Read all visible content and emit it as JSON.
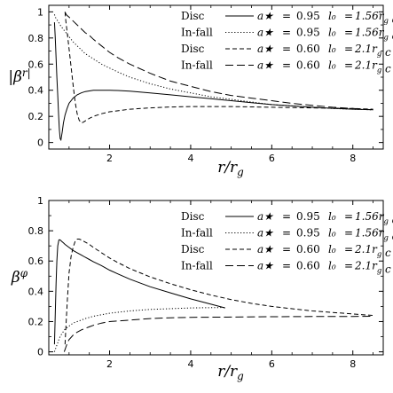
{
  "chart_data": [
    {
      "type": "line",
      "ylabel": "|β^r|",
      "xlabel": "r/r_g",
      "xlim": [
        0.5,
        8.75
      ],
      "ylim": [
        -0.05,
        1.05
      ],
      "xticks": [
        2,
        4,
        6,
        8
      ],
      "yticks": [
        0,
        0.2,
        0.4,
        0.6,
        0.8,
        1
      ],
      "ytick_labels": [
        "0",
        "0.2",
        "0.4",
        "0.6",
        "0.8",
        "1"
      ],
      "legend": "top-right",
      "legend_rows": [
        {
          "label": "Disc",
          "a": "0.95",
          "l0": "1.56r_g c"
        },
        {
          "label": "In-fall",
          "a": "0.95",
          "l0": "1.56r_g c"
        },
        {
          "label": "Disc",
          "a": "0.60",
          "l0": "2.1r_g c"
        },
        {
          "label": "In-fall",
          "a": "0.60",
          "l0": "2.1r_g c"
        }
      ],
      "series": [
        {
          "style": "solid",
          "x": [
            0.64,
            0.66,
            0.68,
            0.7,
            0.72,
            0.74,
            0.76,
            0.78,
            0.8,
            0.83,
            0.86,
            0.9,
            0.95,
            1.0,
            1.1,
            1.2,
            1.3,
            1.4,
            1.5,
            1.6,
            1.8,
            2.0,
            2.2,
            2.5,
            3.0,
            3.5,
            4.0,
            4.5,
            5.0,
            5.5,
            6.0,
            6.5,
            7.0,
            7.5,
            8.0,
            8.5
          ],
          "y": [
            0.92,
            0.8,
            0.65,
            0.5,
            0.36,
            0.22,
            0.1,
            0.03,
            0.02,
            0.08,
            0.15,
            0.21,
            0.26,
            0.3,
            0.34,
            0.365,
            0.38,
            0.39,
            0.395,
            0.4,
            0.4,
            0.4,
            0.398,
            0.393,
            0.38,
            0.365,
            0.35,
            0.335,
            0.32,
            0.305,
            0.29,
            0.28,
            0.27,
            0.262,
            0.255,
            0.25
          ]
        },
        {
          "style": "dotted",
          "x": [
            0.64,
            0.66,
            0.68,
            0.7,
            0.72,
            0.74,
            0.76,
            0.78,
            0.8,
            0.85,
            0.9,
            0.95,
            1.0,
            1.1,
            1.2,
            1.3,
            1.4,
            1.5,
            1.6,
            1.8,
            2.0,
            2.2,
            2.5,
            3.0,
            3.5,
            4.0,
            4.5,
            5.0,
            5.5,
            6.0,
            6.5,
            7.0,
            7.5,
            8.0,
            8.5
          ],
          "y": [
            0.98,
            0.96,
            0.95,
            0.94,
            0.93,
            0.92,
            0.91,
            0.9,
            0.89,
            0.87,
            0.85,
            0.83,
            0.81,
            0.77,
            0.74,
            0.71,
            0.68,
            0.66,
            0.64,
            0.6,
            0.57,
            0.54,
            0.5,
            0.45,
            0.41,
            0.38,
            0.35,
            0.33,
            0.31,
            0.29,
            0.28,
            0.27,
            0.26,
            0.255,
            0.25
          ]
        },
        {
          "style": "dashed",
          "x": [
            0.9,
            0.92,
            0.95,
            1.0,
            1.05,
            1.1,
            1.15,
            1.2,
            1.25,
            1.3,
            1.35,
            1.4,
            1.45,
            1.5,
            1.6,
            1.7,
            1.8,
            2.0,
            2.5,
            3.0,
            3.5,
            4.0,
            5.0,
            6.0,
            7.0,
            8.0,
            8.5
          ],
          "y": [
            1.0,
            0.93,
            0.85,
            0.72,
            0.58,
            0.44,
            0.31,
            0.22,
            0.17,
            0.15,
            0.155,
            0.165,
            0.175,
            0.185,
            0.2,
            0.21,
            0.22,
            0.235,
            0.255,
            0.265,
            0.272,
            0.275,
            0.275,
            0.27,
            0.265,
            0.26,
            0.255
          ]
        },
        {
          "style": "longdash",
          "x": [
            0.9,
            0.93,
            0.96,
            1.0,
            1.1,
            1.2,
            1.3,
            1.4,
            1.5,
            1.6,
            1.8,
            2.0,
            2.2,
            2.5,
            3.0,
            3.5,
            4.0,
            4.5,
            5.0,
            5.5,
            6.0,
            6.5,
            7.0,
            7.5,
            8.0,
            8.5
          ],
          "y": [
            1.0,
            0.98,
            0.97,
            0.96,
            0.93,
            0.9,
            0.87,
            0.84,
            0.82,
            0.79,
            0.74,
            0.69,
            0.65,
            0.6,
            0.53,
            0.47,
            0.43,
            0.39,
            0.36,
            0.34,
            0.32,
            0.3,
            0.285,
            0.27,
            0.26,
            0.25
          ]
        }
      ]
    },
    {
      "type": "line",
      "ylabel": "β^φ",
      "xlabel": "r/r_g",
      "xlim": [
        0.5,
        8.75
      ],
      "ylim": [
        -0.02,
        1.0
      ],
      "xticks": [
        2,
        4,
        6,
        8
      ],
      "yticks": [
        0,
        0.2,
        0.4,
        0.6,
        0.8,
        1
      ],
      "ytick_labels": [
        "0",
        "0.2",
        "0.4",
        "0.6",
        "0.8",
        "1"
      ],
      "legend": "top-right",
      "legend_rows": [
        {
          "label": "Disc",
          "a": "0.95",
          "l0": "1.56r_g c"
        },
        {
          "label": "In-fall",
          "a": "0.95",
          "l0": "1.56r_g c"
        },
        {
          "label": "Disc",
          "a": "0.60",
          "l0": "2.1r_g c"
        },
        {
          "label": "In-fall",
          "a": "0.60",
          "l0": "2.1r_g c"
        }
      ],
      "series": [
        {
          "style": "solid",
          "x": [
            0.64,
            0.66,
            0.68,
            0.7,
            0.72,
            0.75,
            0.78,
            0.82,
            0.86,
            0.9,
            1.0,
            1.1,
            1.2,
            1.3,
            1.4,
            1.5,
            1.6,
            1.8,
            2.0,
            2.2,
            2.5,
            2.8,
            3.0,
            3.5,
            4.0,
            4.5,
            4.85
          ],
          "y": [
            0.05,
            0.25,
            0.45,
            0.6,
            0.7,
            0.74,
            0.74,
            0.73,
            0.72,
            0.71,
            0.69,
            0.67,
            0.655,
            0.64,
            0.625,
            0.61,
            0.595,
            0.57,
            0.54,
            0.515,
            0.48,
            0.45,
            0.43,
            0.39,
            0.35,
            0.315,
            0.29
          ]
        },
        {
          "style": "dotted",
          "x": [
            0.64,
            0.68,
            0.72,
            0.76,
            0.8,
            0.85,
            0.9,
            1.0,
            1.1,
            1.2,
            1.4,
            1.6,
            1.8,
            2.0,
            2.5,
            3.0,
            3.5,
            4.0,
            4.5,
            4.85
          ],
          "y": [
            0.0,
            0.03,
            0.06,
            0.09,
            0.11,
            0.13,
            0.15,
            0.17,
            0.19,
            0.2,
            0.22,
            0.235,
            0.245,
            0.255,
            0.27,
            0.28,
            0.285,
            0.29,
            0.292,
            0.293
          ]
        },
        {
          "style": "dashed",
          "x": [
            0.9,
            0.93,
            0.96,
            1.0,
            1.05,
            1.1,
            1.15,
            1.2,
            1.25,
            1.3,
            1.4,
            1.5,
            1.6,
            1.8,
            2.0,
            2.2,
            2.5,
            3.0,
            3.5,
            4.0,
            4.5,
            5.0,
            5.5,
            6.0,
            6.5,
            7.0,
            7.5,
            8.0,
            8.5
          ],
          "y": [
            0.05,
            0.2,
            0.35,
            0.52,
            0.63,
            0.69,
            0.73,
            0.745,
            0.745,
            0.74,
            0.725,
            0.71,
            0.69,
            0.655,
            0.62,
            0.59,
            0.55,
            0.495,
            0.45,
            0.41,
            0.375,
            0.345,
            0.32,
            0.3,
            0.285,
            0.27,
            0.26,
            0.25,
            0.24
          ]
        },
        {
          "style": "longdash",
          "x": [
            0.88,
            0.92,
            0.96,
            1.0,
            1.1,
            1.2,
            1.3,
            1.4,
            1.5,
            1.6,
            1.8,
            2.0,
            2.5,
            3.0,
            3.5,
            4.0,
            5.0,
            6.0,
            7.0,
            8.0,
            8.5
          ],
          "y": [
            0.0,
            0.03,
            0.06,
            0.08,
            0.11,
            0.13,
            0.145,
            0.155,
            0.165,
            0.175,
            0.19,
            0.2,
            0.21,
            0.22,
            0.225,
            0.228,
            0.23,
            0.232,
            0.233,
            0.234,
            0.235
          ]
        }
      ]
    }
  ],
  "legend_labels": {
    "astar": "a★",
    "equals": "=",
    "l0": "l₀",
    "eq2": "="
  },
  "axes_text": {
    "top_ylabel": "|β^r|",
    "bottom_ylabel": "β^φ",
    "xlabel": "r/r_g"
  }
}
